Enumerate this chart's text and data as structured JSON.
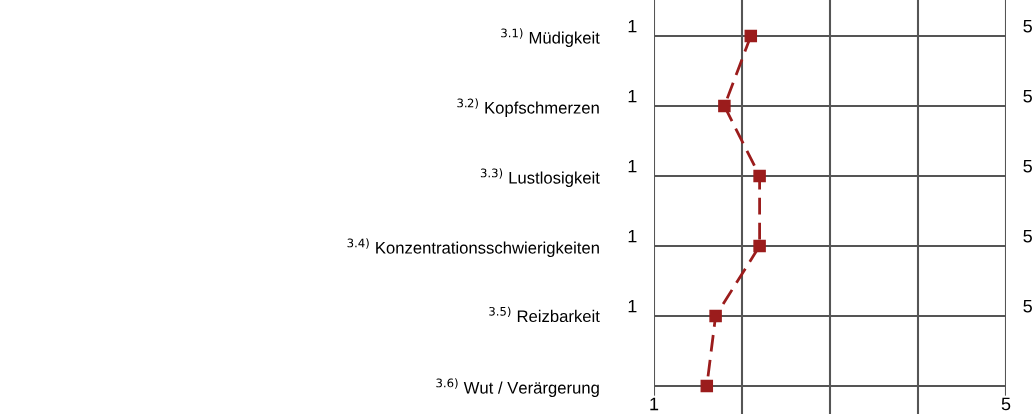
{
  "chart_data": {
    "type": "line",
    "orientation": "horizontal",
    "categories": [
      "$^{3.1)}$ Müdigkeit",
      "$^{3.2)}$ Kopfschmerzen",
      "$^{3.3)}$ Lustlosigkeit",
      "$^{3.4)}$ Konzentrationsschwierigkeiten",
      "$^{3.5)}$ Reizbarkeit",
      "$^{3.6)}$ Wut / Verärgerung"
    ],
    "series": [
      {
        "color": "#9b1c1c",
        "values": [
          2.1,
          1.8,
          2.2,
          2.2,
          1.7,
          1.6
        ]
      }
    ],
    "xlim": [
      1,
      5
    ],
    "xticks": [
      1,
      5
    ],
    "ref_lines": [
      {
        "axis": "x",
        "value": 2,
        "color": "#555555"
      },
      {
        "axis": "x",
        "value": 3,
        "color": "#555555"
      },
      {
        "axis": "x",
        "value": 4,
        "color": "#555555"
      }
    ],
    "annotations": [
      "1",
      "5",
      "1",
      "5",
      "1",
      "5",
      "1",
      "5",
      "1",
      "5"
    ],
    "grid": true,
    "marker": "square",
    "line_style": "dashed",
    "legend": false
  }
}
